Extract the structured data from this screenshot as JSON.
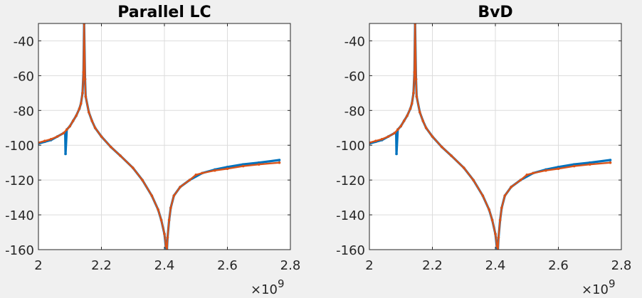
{
  "chart_data": [
    {
      "type": "line",
      "title": "Parallel LC",
      "xlim": [
        2.0,
        2.8
      ],
      "ylim": [
        -160,
        -30
      ],
      "x_scale_label": "×10",
      "x_scale_exponent": "9",
      "xticks": [
        2.0,
        2.2,
        2.4,
        2.6,
        2.8
      ],
      "xtick_labels": [
        "2",
        "2.2",
        "2.4",
        "2.6",
        "2.8"
      ],
      "yticks": [
        -160,
        -140,
        -120,
        -100,
        -80,
        -60,
        -40
      ],
      "ytick_labels": [
        "-160",
        "-140",
        "-120",
        "-100",
        "-80",
        "-60",
        "-40"
      ],
      "grid": true,
      "series": [
        {
          "color": "#0072bd",
          "marker": true,
          "x": [
            2.0,
            2.02,
            2.04,
            2.06,
            2.08,
            2.085,
            2.086,
            2.09,
            2.1,
            2.11,
            2.12,
            2.13,
            2.135,
            2.14,
            2.143,
            2.145,
            2.148,
            2.15,
            2.16,
            2.17,
            2.18,
            2.2,
            2.23,
            2.26,
            2.3,
            2.33,
            2.36,
            2.38,
            2.39,
            2.4,
            2.405,
            2.408,
            2.41,
            2.415,
            2.42,
            2.43,
            2.45,
            2.48,
            2.52,
            2.56,
            2.6,
            2.65,
            2.7,
            2.765
          ],
          "y": [
            -99,
            -98,
            -97,
            -95,
            -93,
            -93,
            -105,
            -91,
            -89,
            -86,
            -83,
            -79,
            -76,
            -70,
            -58,
            -30,
            -62,
            -72,
            -81,
            -86,
            -90,
            -95,
            -101,
            -106,
            -113,
            -120,
            -129,
            -137,
            -143,
            -151,
            -159,
            -160,
            -153,
            -143,
            -136,
            -129,
            -124,
            -120,
            -116,
            -114,
            -112.5,
            -111,
            -110,
            -108.5
          ]
        },
        {
          "color": "#d95319",
          "marker": true,
          "x": [
            2.0,
            2.02,
            2.04,
            2.06,
            2.08,
            2.09,
            2.1,
            2.11,
            2.12,
            2.13,
            2.135,
            2.14,
            2.143,
            2.145,
            2.148,
            2.15,
            2.16,
            2.17,
            2.18,
            2.2,
            2.23,
            2.26,
            2.3,
            2.33,
            2.36,
            2.38,
            2.39,
            2.4,
            2.405,
            2.408,
            2.41,
            2.415,
            2.42,
            2.43,
            2.45,
            2.48,
            2.5,
            2.52,
            2.56,
            2.6,
            2.65,
            2.7,
            2.765
          ],
          "y": [
            -98.5,
            -97.5,
            -96.5,
            -95,
            -93,
            -91,
            -89,
            -86,
            -83,
            -79,
            -76,
            -70,
            -58,
            -30,
            -62,
            -72,
            -81,
            -86,
            -90,
            -95,
            -101,
            -106,
            -113,
            -120,
            -129,
            -137,
            -143,
            -151,
            -158,
            -160,
            -153,
            -143,
            -136,
            -129,
            -124,
            -120,
            -117,
            -116,
            -114.5,
            -113.5,
            -112,
            -111,
            -110
          ]
        }
      ]
    },
    {
      "type": "line",
      "title": "BvD",
      "xlim": [
        2.0,
        2.8
      ],
      "ylim": [
        -160,
        -30
      ],
      "x_scale_label": "×10",
      "x_scale_exponent": "9",
      "xticks": [
        2.0,
        2.2,
        2.4,
        2.6,
        2.8
      ],
      "xtick_labels": [
        "2",
        "2.2",
        "2.4",
        "2.6",
        "2.8"
      ],
      "yticks": [
        -160,
        -140,
        -120,
        -100,
        -80,
        -60,
        -40
      ],
      "ytick_labels": [
        "-160",
        "-140",
        "-120",
        "-100",
        "-80",
        "-60",
        "-40"
      ],
      "grid": true,
      "series": [
        {
          "color": "#0072bd",
          "marker": true,
          "x": [
            2.0,
            2.02,
            2.04,
            2.06,
            2.08,
            2.085,
            2.086,
            2.09,
            2.1,
            2.11,
            2.12,
            2.13,
            2.135,
            2.14,
            2.143,
            2.145,
            2.148,
            2.15,
            2.16,
            2.17,
            2.18,
            2.2,
            2.23,
            2.26,
            2.3,
            2.33,
            2.36,
            2.38,
            2.39,
            2.4,
            2.405,
            2.408,
            2.41,
            2.415,
            2.42,
            2.43,
            2.45,
            2.48,
            2.52,
            2.56,
            2.6,
            2.65,
            2.7,
            2.765
          ],
          "y": [
            -99,
            -98,
            -97,
            -95,
            -93,
            -93,
            -105,
            -91,
            -89,
            -86,
            -83,
            -79,
            -76,
            -70,
            -58,
            -30,
            -62,
            -72,
            -81,
            -86,
            -90,
            -95,
            -101,
            -106,
            -113,
            -120,
            -129,
            -137,
            -143,
            -151,
            -159,
            -160,
            -153,
            -143,
            -136,
            -129,
            -124,
            -120,
            -116,
            -114,
            -112.5,
            -111,
            -110,
            -108.5
          ]
        },
        {
          "color": "#d95319",
          "marker": true,
          "x": [
            2.0,
            2.02,
            2.04,
            2.06,
            2.08,
            2.09,
            2.1,
            2.11,
            2.12,
            2.13,
            2.135,
            2.14,
            2.143,
            2.145,
            2.148,
            2.15,
            2.16,
            2.17,
            2.18,
            2.2,
            2.23,
            2.26,
            2.3,
            2.33,
            2.36,
            2.38,
            2.39,
            2.4,
            2.405,
            2.408,
            2.41,
            2.415,
            2.42,
            2.43,
            2.45,
            2.48,
            2.5,
            2.52,
            2.56,
            2.6,
            2.65,
            2.7,
            2.765
          ],
          "y": [
            -98.5,
            -97.5,
            -96.5,
            -95,
            -93,
            -91,
            -89,
            -86,
            -83,
            -79,
            -76,
            -70,
            -58,
            -30,
            -62,
            -72,
            -81,
            -86,
            -90,
            -95,
            -101,
            -106,
            -113,
            -120,
            -129,
            -137,
            -143,
            -151,
            -158,
            -160,
            -153,
            -143,
            -136,
            -129,
            -124,
            -120,
            -117,
            -116,
            -114.5,
            -113.5,
            -112,
            -111,
            -110
          ]
        }
      ]
    }
  ]
}
